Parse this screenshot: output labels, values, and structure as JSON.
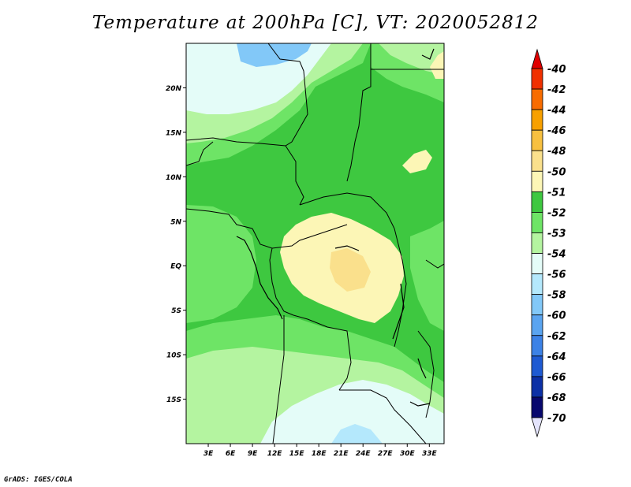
{
  "title": "Temperature at 200hPa [C], VT: 2020052812",
  "credit": "GrADS: IGES/COLA",
  "map": {
    "lat_ticks": [
      {
        "label": "20N",
        "lat": 20
      },
      {
        "label": "15N",
        "lat": 15
      },
      {
        "label": "10N",
        "lat": 10
      },
      {
        "label": "5N",
        "lat": 5
      },
      {
        "label": "EQ",
        "lat": 0
      },
      {
        "label": "5S",
        "lat": -5
      },
      {
        "label": "10S",
        "lat": -10
      },
      {
        "label": "15S",
        "lat": -15
      }
    ],
    "lon_ticks": [
      {
        "label": "3E",
        "lon": 3
      },
      {
        "label": "6E",
        "lon": 6
      },
      {
        "label": "9E",
        "lon": 9
      },
      {
        "label": "12E",
        "lon": 12
      },
      {
        "label": "15E",
        "lon": 15
      },
      {
        "label": "18E",
        "lon": 18
      },
      {
        "label": "21E",
        "lon": 21
      },
      {
        "label": "24E",
        "lon": 24
      },
      {
        "label": "27E",
        "lon": 27
      },
      {
        "label": "30E",
        "lon": 30
      },
      {
        "label": "33E",
        "lon": 33
      }
    ],
    "lon_range": [
      0,
      35
    ],
    "lat_range": [
      -20,
      25
    ]
  },
  "colorbar": {
    "levels": [
      {
        "label": "-40",
        "color": "#e80000"
      },
      {
        "label": "-42",
        "color": "#f03000"
      },
      {
        "label": "-44",
        "color": "#f86c00"
      },
      {
        "label": "-46",
        "color": "#f8a000"
      },
      {
        "label": "-48",
        "color": "#f8c040"
      },
      {
        "label": "-50",
        "color": "#fae08c"
      },
      {
        "label": "-51",
        "color": "#fcf6b6"
      },
      {
        "label": "-52",
        "color": "#3ec840"
      },
      {
        "label": "-53",
        "color": "#6ee466"
      },
      {
        "label": "-54",
        "color": "#b4f4a0"
      },
      {
        "label": "-56",
        "color": "#e4fcf8"
      },
      {
        "label": "-58",
        "color": "#b4e8fc"
      },
      {
        "label": "-60",
        "color": "#82c8f8"
      },
      {
        "label": "-62",
        "color": "#5aa4f0"
      },
      {
        "label": "-64",
        "color": "#3c82e6"
      },
      {
        "label": "-66",
        "color": "#1e5ad2"
      },
      {
        "label": "-68",
        "color": "#0c30a6"
      },
      {
        "label": "-70",
        "color": "#08086e"
      }
    ],
    "top_cap_color": "#e00000",
    "bottom_cap_color": "#e4e4fc"
  }
}
